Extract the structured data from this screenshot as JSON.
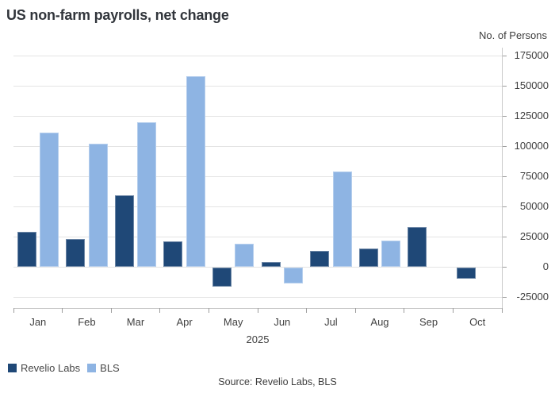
{
  "chart_data": {
    "type": "bar",
    "title": "US non-farm payrolls, net change",
    "ylabel": "No. of Persons",
    "x_period_label": "2025",
    "categories": [
      "Jan",
      "Feb",
      "Mar",
      "Apr",
      "May",
      "Jun",
      "Jul",
      "Aug",
      "Sep",
      "Oct"
    ],
    "series": [
      {
        "name": "Revelio Labs",
        "color": "#1f4877",
        "values": [
          29000,
          23000,
          59000,
          21000,
          -16000,
          4000,
          13000,
          15000,
          33000,
          -9000
        ]
      },
      {
        "name": "BLS",
        "color": "#8eb4e3",
        "values": [
          111000,
          102000,
          120000,
          158000,
          19000,
          -13000,
          79000,
          22000,
          null,
          null
        ]
      }
    ],
    "ylim": [
      -25000,
      175000
    ],
    "ytick_step": 25000,
    "grid": true,
    "legend_position": "bottom-left"
  },
  "footer": {
    "source": "Source: Revelio Labs, BLS"
  }
}
